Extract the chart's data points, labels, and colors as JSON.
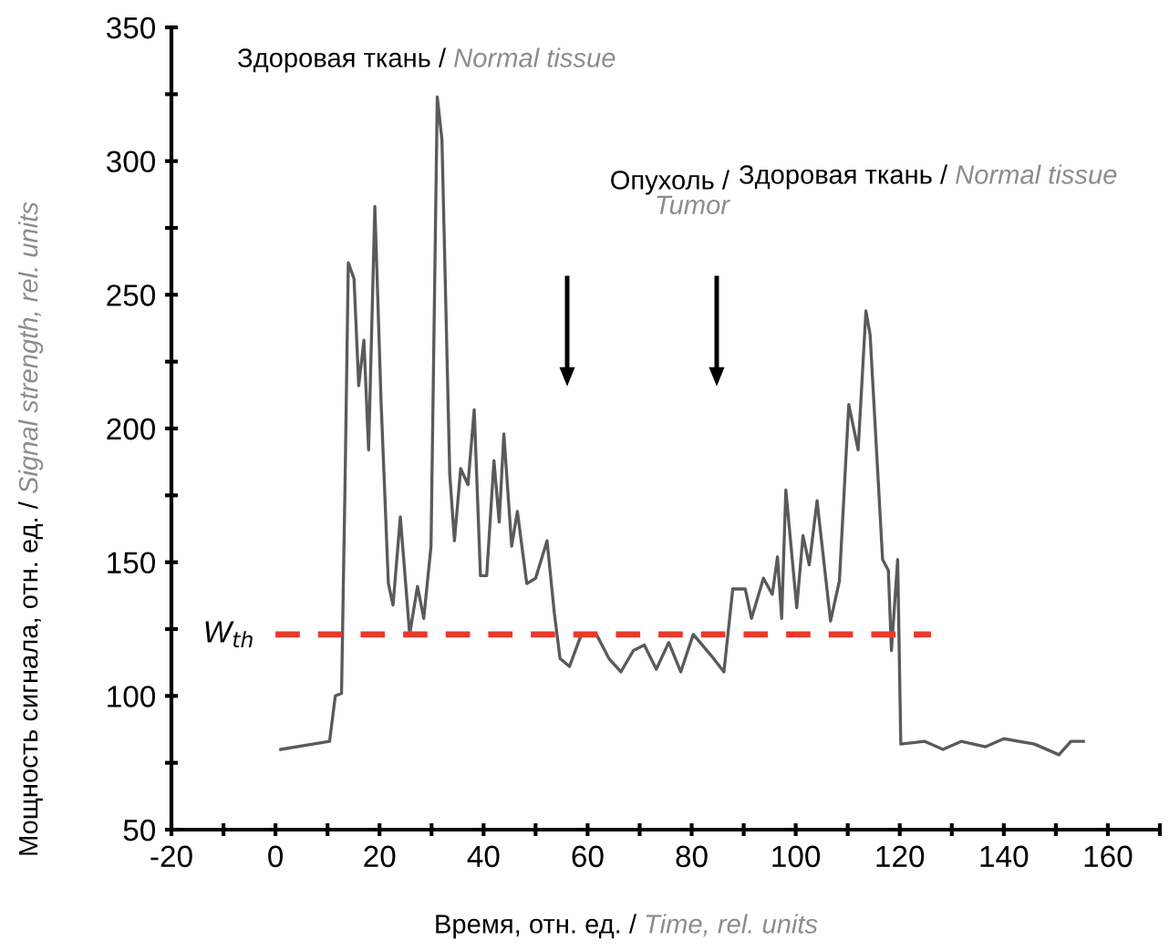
{
  "chart_data": {
    "type": "line",
    "xlabel": "Время, отн. ед. / Time, rel. units",
    "ylabel": "Мощность сигнала, отн. ед. / Signal strength, rel. units",
    "annotations": [
      "Здоровая ткань / Normal tissue",
      "Опухоль / Tumor",
      "Здоровая ткань / Normal tissue"
    ],
    "series": [
      {
        "color": "#5a5a5a",
        "x": [
          1,
          10.4,
          11.5,
          12.7,
          13.4,
          14,
          15.1,
          16,
          17,
          17.9,
          19.1,
          20.3,
          21.7,
          22.6,
          24,
          25.8,
          27.3,
          28.5,
          29.9,
          31.1,
          32,
          33.5,
          34.4,
          35.6,
          37,
          38.2,
          39.4,
          40.6,
          42,
          43,
          43.9,
          45.4,
          46.5,
          48.3,
          50,
          52.2,
          53.6,
          54.7,
          56.5,
          58.8,
          61.7,
          64.1,
          66.4,
          68.8,
          70.9,
          73.2,
          75.6,
          77.9,
          80.3,
          83.8,
          86.2,
          87.9,
          90.3,
          91.5,
          93.8,
          95.5,
          96.5,
          97.3,
          98.1,
          100.2,
          101.4,
          102.6,
          104.1,
          106.7,
          108.4,
          110.2,
          112,
          113.5,
          114.3,
          116.7,
          117.8,
          118.4,
          119.6,
          120.2,
          124.8,
          128.3,
          131.8,
          136.5,
          140,
          145.9,
          150.6,
          152.9,
          155.3
        ],
        "values": [
          80,
          83,
          100,
          101,
          183,
          262,
          256,
          216,
          233,
          192,
          283,
          210,
          142,
          134,
          167,
          123,
          141,
          129,
          156,
          324,
          308,
          183,
          158,
          185,
          179,
          207,
          145,
          145,
          188,
          165,
          198,
          156,
          169,
          142,
          144,
          158,
          131,
          114,
          111,
          123,
          123,
          114,
          109,
          117,
          119,
          110,
          120,
          109,
          123,
          115,
          109,
          140,
          140,
          129,
          144,
          138,
          152,
          129,
          177,
          133,
          160,
          149,
          173,
          128,
          143,
          209,
          192,
          244,
          235,
          151,
          147,
          117,
          151,
          82,
          83,
          80,
          83,
          81,
          84,
          82,
          78,
          83,
          83
        ]
      },
      {
        "name": "W$_{th}$",
        "color": "#e8392b",
        "line_style": "dashed",
        "x": [
          0,
          126
        ],
        "values": [
          123,
          123
        ]
      }
    ],
    "xlim": [
      -20,
      170
    ],
    "xticks": [
      -20,
      {
        "value": -10,
        "label": null
      },
      0,
      {
        "value": 10,
        "label": null
      },
      20,
      {
        "value": 30,
        "label": null
      },
      40,
      {
        "value": 50,
        "label": null
      },
      60,
      {
        "value": 70,
        "label": null
      },
      80,
      {
        "value": 90,
        "label": null
      },
      100,
      {
        "value": 110,
        "label": null
      },
      120,
      {
        "value": 130,
        "label": null
      },
      140,
      {
        "value": 150,
        "label": null
      },
      160,
      {
        "value": 170,
        "label": null
      }
    ],
    "ylim": [
      50,
      350
    ],
    "yticks": [
      50,
      {
        "value": 75,
        "label": null
      },
      100,
      {
        "value": 125,
        "label": null
      },
      150,
      {
        "value": 175,
        "label": null
      },
      200,
      {
        "value": 225,
        "label": null
      },
      250,
      {
        "value": 275,
        "label": null
      },
      300,
      {
        "value": 325,
        "label": null
      },
      350
    ],
    "grid": false,
    "legend": false
  }
}
